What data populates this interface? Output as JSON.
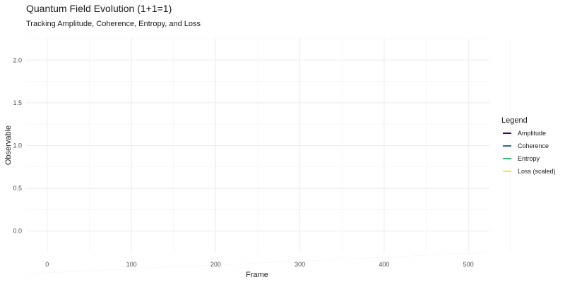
{
  "chart_data": {
    "type": "line",
    "title": "Quantum Field Evolution (1+1=1)",
    "subtitle": "Tracking Amplitude, Coherence, Entropy, and Loss",
    "xlabel": "Frame",
    "ylabel": "Observable",
    "x_ticks": [
      0,
      100,
      200,
      300,
      400,
      500
    ],
    "x_tick_labels": [
      "0",
      "100",
      "200",
      "300",
      "400",
      "500"
    ],
    "y_ticks": [
      0.0,
      0.5,
      1.0,
      1.5,
      2.0
    ],
    "y_tick_labels": [
      "0.0",
      "0.5",
      "1.0",
      "1.5",
      "2.0"
    ],
    "xlim": [
      -25,
      525
    ],
    "ylim": [
      -0.25,
      2.25
    ],
    "grid": true,
    "legend": {
      "title": "Legend",
      "placement": "right"
    },
    "series": [
      {
        "name": "Amplitude",
        "color": "#440154",
        "values": []
      },
      {
        "name": "Coherence",
        "color": "#31688E",
        "values": []
      },
      {
        "name": "Entropy",
        "color": "#35B779",
        "values": []
      },
      {
        "name": "Loss (scaled)",
        "color": "#FDE725",
        "values": []
      }
    ]
  }
}
